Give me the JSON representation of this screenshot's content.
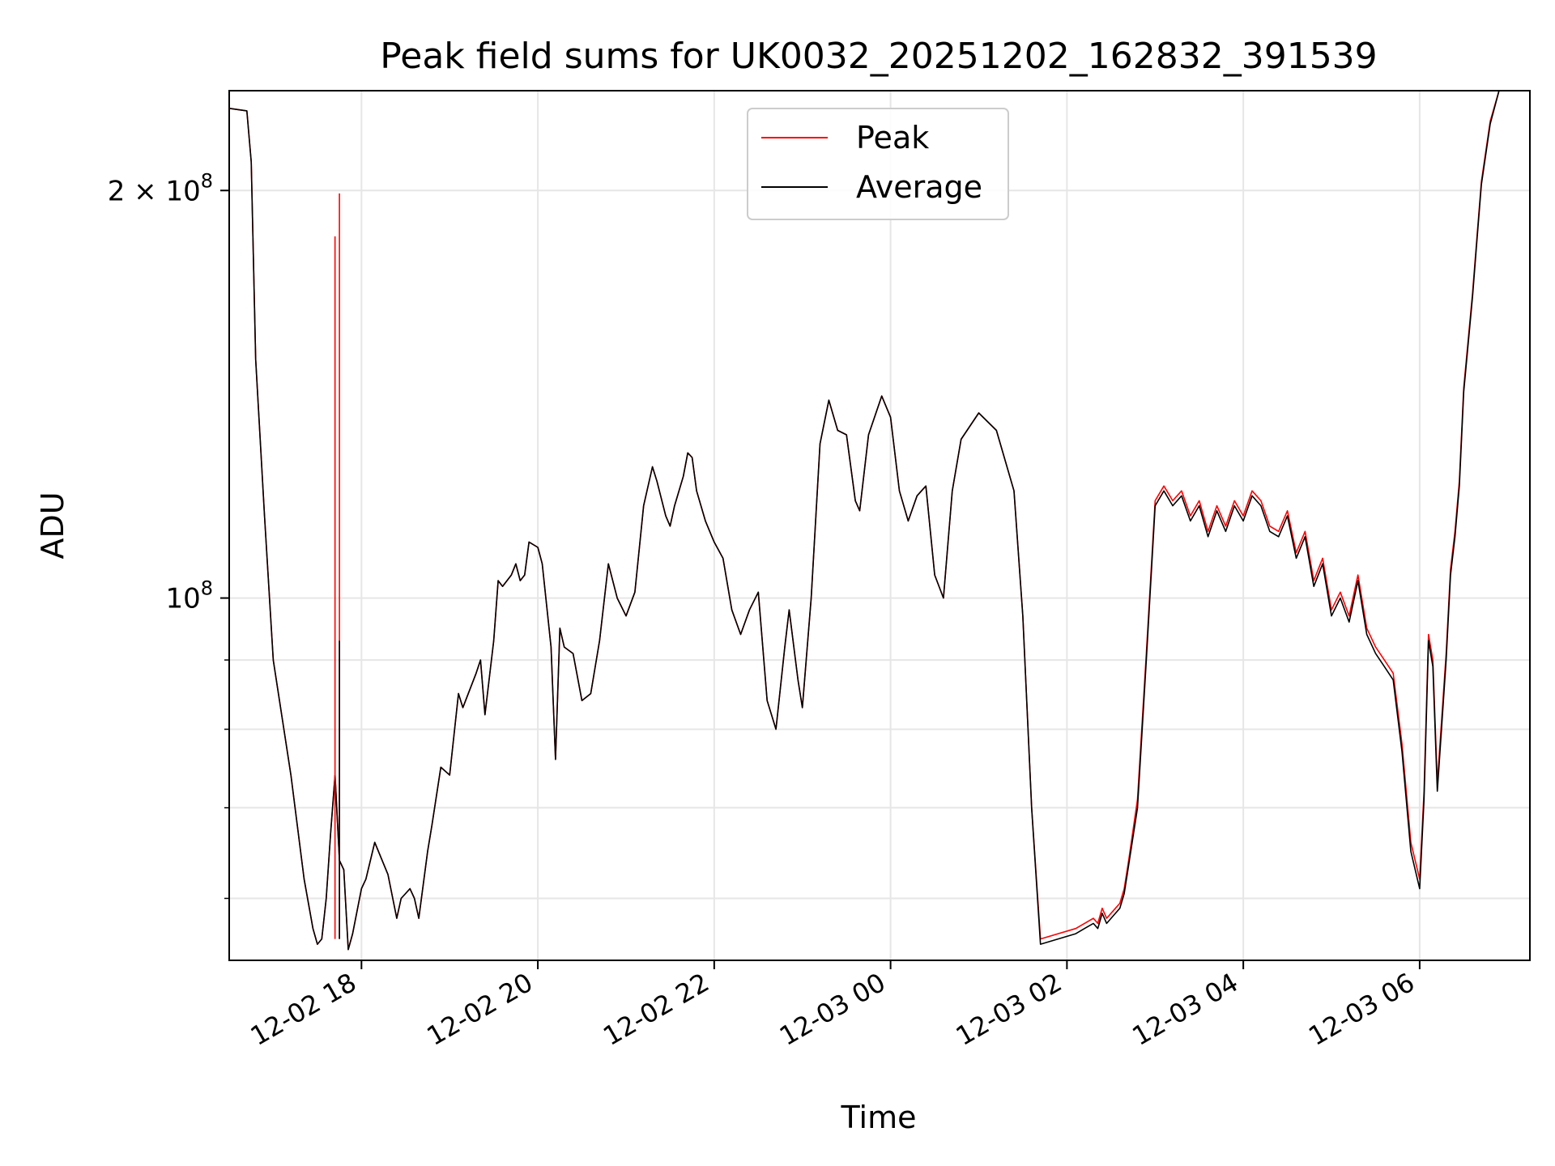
{
  "chart_data": {
    "type": "line",
    "title": "Peak field sums for UK0032_20251202_162832_391539",
    "xlabel": "Time",
    "ylabel": "ADU",
    "yscale": "log",
    "grid": true,
    "legend_position": "top-center",
    "xlim_hours": [
      16.5,
      31.25
    ],
    "ylim": [
      54000000,
      237000000
    ],
    "x_ticks": [
      {
        "hours": 18,
        "label": "12-02 18"
      },
      {
        "hours": 20,
        "label": "12-02 20"
      },
      {
        "hours": 22,
        "label": "12-02 22"
      },
      {
        "hours": 24,
        "label": "12-03 00"
      },
      {
        "hours": 26,
        "label": "12-03 02"
      },
      {
        "hours": 28,
        "label": "12-03 04"
      },
      {
        "hours": 30,
        "label": "12-03 06"
      }
    ],
    "y_major_ticks": [
      {
        "value": 100000000,
        "base": "10",
        "exp": "8"
      },
      {
        "value": 200000000,
        "base": "2 × 10",
        "exp": "8"
      }
    ],
    "y_minor_ticks": [
      60000000,
      70000000,
      80000000,
      90000000
    ],
    "x_hours": [
      16.5,
      16.7,
      16.75,
      16.8,
      16.9,
      17.0,
      17.2,
      17.35,
      17.45,
      17.5,
      17.55,
      17.6,
      17.65,
      17.7,
      17.75,
      17.8,
      17.85,
      17.9,
      18.0,
      18.05,
      18.15,
      18.3,
      18.4,
      18.45,
      18.5,
      18.55,
      18.6,
      18.65,
      18.75,
      18.8,
      18.9,
      19.0,
      19.1,
      19.15,
      19.3,
      19.35,
      19.4,
      19.5,
      19.55,
      19.6,
      19.7,
      19.75,
      19.8,
      19.85,
      19.9,
      20.0,
      20.05,
      20.15,
      20.2,
      20.25,
      20.3,
      20.4,
      20.5,
      20.6,
      20.7,
      20.8,
      20.9,
      21.0,
      21.1,
      21.2,
      21.3,
      21.35,
      21.45,
      21.5,
      21.55,
      21.65,
      21.7,
      21.75,
      21.8,
      21.9,
      22.0,
      22.1,
      22.2,
      22.3,
      22.4,
      22.5,
      22.6,
      22.7,
      22.8,
      22.85,
      22.95,
      23.0,
      23.1,
      23.2,
      23.3,
      23.4,
      23.5,
      23.6,
      23.65,
      23.75,
      23.9,
      24.0,
      24.1,
      24.2,
      24.3,
      24.4,
      24.5,
      24.6,
      24.7,
      24.8,
      25.0,
      25.2,
      25.4,
      25.5,
      25.6,
      25.7,
      25.9,
      26.1,
      26.2,
      26.3,
      26.35,
      26.4,
      26.45,
      26.55,
      26.6,
      26.65,
      26.7,
      26.8,
      26.9,
      27.0,
      27.1,
      27.2,
      27.3,
      27.4,
      27.5,
      27.6,
      27.7,
      27.8,
      27.9,
      28.0,
      28.1,
      28.2,
      28.3,
      28.4,
      28.5,
      28.6,
      28.7,
      28.8,
      28.9,
      29.0,
      29.1,
      29.2,
      29.3,
      29.4,
      29.5,
      29.6,
      29.7,
      29.8,
      29.9,
      30.0,
      30.05,
      30.1,
      30.15,
      30.2,
      30.3,
      30.35,
      30.4,
      30.45,
      30.5,
      30.6,
      30.65,
      30.7,
      30.8,
      30.9,
      31.0,
      31.1,
      31.15,
      31.25
    ],
    "series": [
      {
        "name": "Peak",
        "color": "#ff0000",
        "values": [
          230,
          229,
          210,
          150,
          115,
          90,
          74,
          62,
          57,
          55.5,
          56,
          60,
          67,
          74,
          64,
          63,
          55,
          56.5,
          61,
          62,
          66,
          62.5,
          58,
          60,
          60.5,
          61,
          60,
          58,
          65,
          68,
          75,
          74,
          85,
          83,
          88,
          90,
          82,
          93,
          103,
          102,
          104,
          106,
          103,
          104,
          110,
          109,
          106,
          92,
          76,
          95,
          92,
          91,
          84,
          85,
          93,
          106,
          100,
          97,
          101,
          117,
          125,
          122,
          115,
          113,
          117,
          123,
          128,
          127,
          120,
          114,
          110,
          107,
          98,
          94,
          98,
          101,
          84,
          80,
          92,
          98,
          87,
          83,
          100,
          130,
          140,
          133,
          132,
          118,
          116,
          132,
          141,
          136,
          120,
          114,
          119,
          121,
          104,
          100,
          120,
          131,
          137,
          133,
          120,
          97,
          70,
          56,
          56.5,
          57,
          57.5,
          58,
          57.5,
          59,
          58,
          59,
          59.5,
          61,
          64,
          71,
          91,
          118,
          121,
          118,
          120,
          115,
          118,
          112,
          117,
          113,
          118,
          115,
          120,
          118,
          113,
          112,
          116,
          108,
          112,
          103,
          107,
          98,
          101,
          97,
          104,
          95,
          92,
          90,
          88,
          78,
          66,
          62,
          72,
          94,
          90,
          73,
          91,
          105,
          112,
          122,
          143,
          168,
          185,
          203,
          225,
          237
        ]
      },
      {
        "name": "Average",
        "color": "#000000",
        "values": [
          230,
          229,
          210,
          150,
          115,
          90,
          74,
          62,
          57,
          55.5,
          56,
          60,
          67,
          74,
          64,
          63,
          55,
          56.5,
          61,
          62,
          66,
          62.5,
          58,
          60,
          60.5,
          61,
          60,
          58,
          65,
          68,
          75,
          74,
          85,
          83,
          88,
          90,
          82,
          93,
          103,
          102,
          104,
          106,
          103,
          104,
          110,
          109,
          106,
          92,
          76,
          95,
          92,
          91,
          84,
          85,
          93,
          106,
          100,
          97,
          101,
          117,
          125,
          122,
          115,
          113,
          117,
          123,
          128,
          127,
          120,
          114,
          110,
          107,
          98,
          94,
          98,
          101,
          84,
          80,
          92,
          98,
          87,
          83,
          100,
          130,
          140,
          133,
          132,
          118,
          116,
          132,
          141,
          136,
          120,
          114,
          119,
          121,
          104,
          100,
          120,
          131,
          137,
          133,
          120,
          97,
          70,
          55.5,
          56,
          56.5,
          57,
          57.5,
          57,
          58.5,
          57.5,
          58.5,
          59,
          60.5,
          63.5,
          70,
          90,
          117,
          120,
          117,
          119,
          114,
          117,
          111,
          116,
          112,
          117,
          114,
          119,
          117,
          112,
          111,
          115,
          107,
          111,
          102,
          106,
          97,
          100,
          96,
          103,
          94,
          91,
          89,
          87,
          77,
          65,
          61,
          71,
          93,
          89,
          72,
          90,
          104,
          111,
          121,
          142,
          167,
          184,
          202,
          224,
          237
        ]
      }
    ],
    "spikes": [
      {
        "hours": 17.7,
        "value": 185,
        "series": "Peak"
      },
      {
        "hours": 17.75,
        "value": 199,
        "series": "Peak"
      },
      {
        "hours": 17.75,
        "value": 93,
        "series": "Average"
      }
    ],
    "value_unit": "millions"
  }
}
